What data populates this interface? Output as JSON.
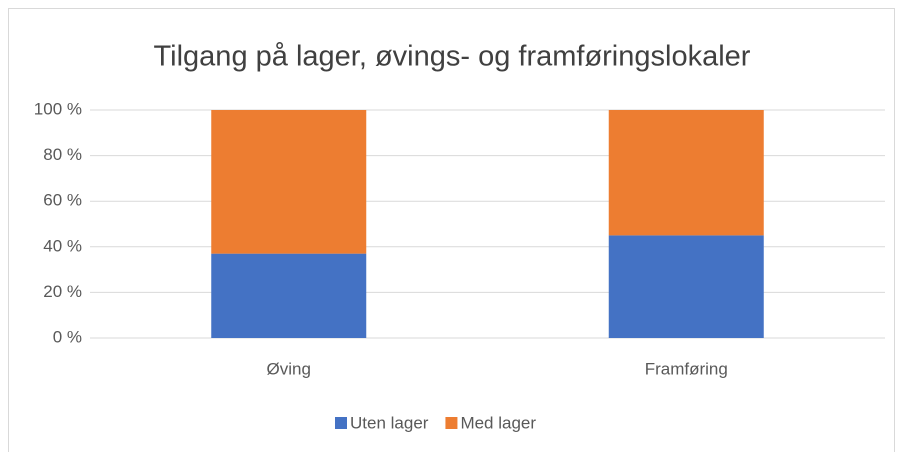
{
  "chart_data": {
    "type": "stacked_bar",
    "title": "Tilgang på lager, øvings- og framføringslokaler",
    "categories": [
      "Øving",
      "Framføring"
    ],
    "series": [
      {
        "name": "Uten lager",
        "color": "#4472c4",
        "values": [
          37,
          45
        ]
      },
      {
        "name": "Med lager",
        "color": "#ed7d31",
        "values": [
          63,
          55
        ]
      }
    ],
    "ylim": [
      0,
      100
    ],
    "yticks": [
      {
        "value": 0,
        "label": "0 %"
      },
      {
        "value": 20,
        "label": "20 %"
      },
      {
        "value": 40,
        "label": "40 %"
      },
      {
        "value": 60,
        "label": "60 %"
      },
      {
        "value": 80,
        "label": "80 %"
      },
      {
        "value": 100,
        "label": "100 %"
      }
    ],
    "grid": true,
    "legend": "bottom"
  }
}
